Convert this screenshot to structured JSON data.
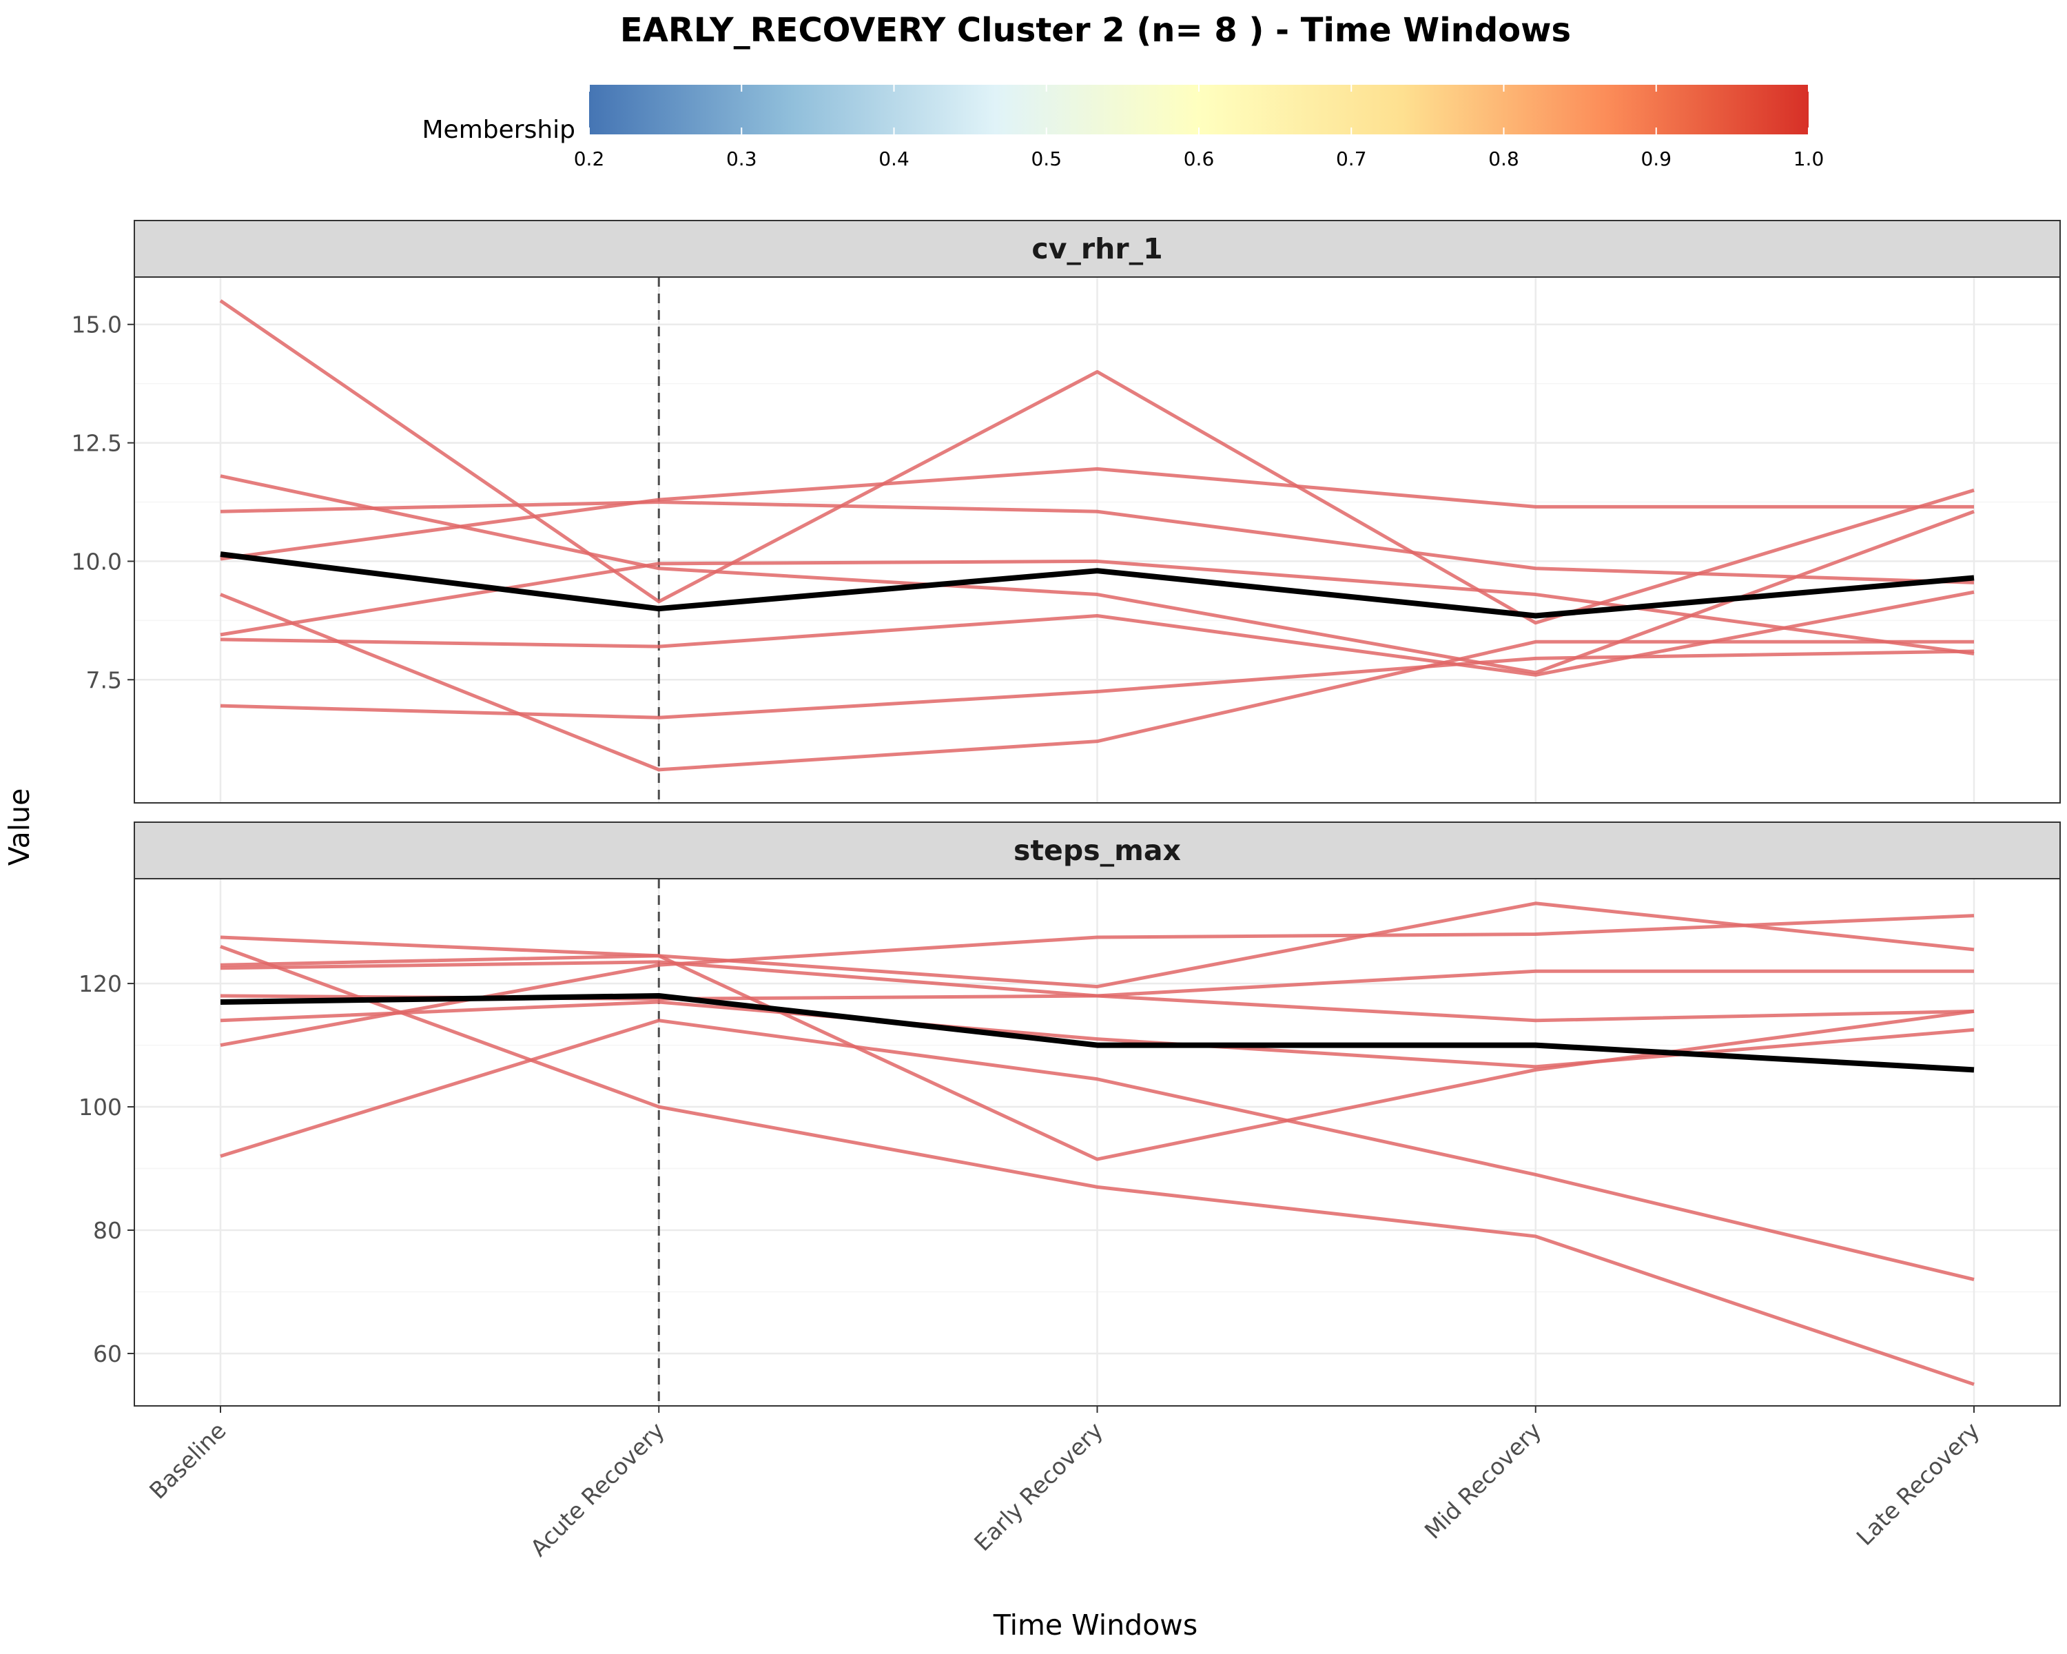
{
  "chart_data": {
    "type": "line",
    "title": "EARLY_RECOVERY Cluster 2 (n= 8 ) - Time Windows",
    "xlabel": "Time Windows",
    "ylabel": "Value",
    "categories": [
      "Baseline",
      "Acute Recovery",
      "Early Recovery",
      "Mid Recovery",
      "Late Recovery"
    ],
    "reference_line_at": "Acute Recovery",
    "legend": {
      "title": "Membership",
      "placement": "top",
      "type": "colorbar",
      "range": [
        0.2,
        1.0
      ],
      "ticks": [
        "0.2",
        "0.3",
        "0.4",
        "0.5",
        "0.6",
        "0.7",
        "0.8",
        "0.9",
        "1.0"
      ],
      "colors": [
        "#4575b4",
        "#91bfdb",
        "#e0f3f8",
        "#ffffbf",
        "#fee090",
        "#fc8d59",
        "#d73027"
      ]
    },
    "line_color": "#e06666",
    "mean_color": "#000000",
    "grid": true,
    "panels": [
      {
        "name": "cv_rhr_1",
        "ylim": [
          4.9,
          16.0
        ],
        "yticks": [
          7.5,
          10.0,
          12.5,
          15.0
        ],
        "ytick_labels": [
          "7.5",
          "10.0",
          "12.5",
          "15.0"
        ],
        "series": [
          {
            "values": [
              15.5,
              9.15,
              14.0,
              8.7,
              11.5
            ]
          },
          {
            "values": [
              11.8,
              9.85,
              9.3,
              7.65,
              11.05
            ]
          },
          {
            "values": [
              11.05,
              11.25,
              11.05,
              9.85,
              9.55
            ]
          },
          {
            "values": [
              10.05,
              11.3,
              11.95,
              11.15,
              11.15
            ]
          },
          {
            "values": [
              8.45,
              9.95,
              10.0,
              9.3,
              8.05
            ]
          },
          {
            "values": [
              8.35,
              8.2,
              8.85,
              7.6,
              9.35
            ]
          },
          {
            "values": [
              9.3,
              5.6,
              6.2,
              8.3,
              8.3
            ]
          },
          {
            "values": [
              6.95,
              6.7,
              7.25,
              7.95,
              8.1
            ]
          }
        ],
        "mean": [
          10.15,
          9.0,
          9.8,
          8.85,
          9.65
        ]
      },
      {
        "name": "steps_max",
        "ylim": [
          51.5,
          137.0
        ],
        "yticks": [
          60,
          80,
          100,
          120
        ],
        "ytick_labels": [
          "60",
          "80",
          "100",
          "120"
        ],
        "series": [
          {
            "values": [
              127.5,
              124.5,
              119.5,
              133.0,
              125.5
            ]
          },
          {
            "values": [
              126.0,
              100.0,
              87.0,
              79.0,
              55.0
            ]
          },
          {
            "values": [
              123.0,
              124.5,
              91.5,
              106.0,
              115.5
            ]
          },
          {
            "values": [
              122.5,
              123.5,
              118.0,
              114.0,
              115.5
            ]
          },
          {
            "values": [
              118.0,
              117.5,
              118.0,
              122.0,
              122.0
            ]
          },
          {
            "values": [
              114.0,
              117.0,
              111.0,
              106.5,
              112.5
            ]
          },
          {
            "values": [
              110.0,
              123.0,
              127.5,
              128.0,
              131.0
            ]
          },
          {
            "values": [
              92.0,
              114.0,
              104.5,
              89.0,
              72.0
            ]
          }
        ],
        "mean": [
          117.0,
          118.0,
          110.0,
          110.0,
          106.0
        ]
      }
    ]
  }
}
